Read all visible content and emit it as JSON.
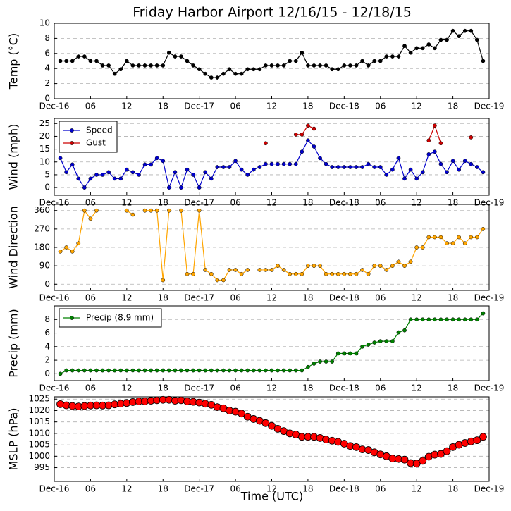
{
  "chart_data": [
    {
      "type": "line",
      "title": "Friday Harbor Airport 12/16/15 - 12/18/15",
      "ylabel": "Temp (°C)",
      "x": [
        1,
        2,
        3,
        4,
        5,
        6,
        7,
        8,
        9,
        10,
        11,
        12,
        13,
        14,
        15,
        16,
        17,
        18,
        19,
        20,
        21,
        22,
        23,
        24,
        25,
        26,
        27,
        28,
        29,
        30,
        31,
        32,
        33,
        34,
        35,
        36,
        37,
        38,
        39,
        40,
        41,
        42,
        43,
        44,
        45,
        46,
        47,
        48,
        49,
        50,
        51,
        52,
        53,
        54,
        55,
        56,
        57,
        58,
        59,
        60,
        61,
        62,
        63,
        64,
        65,
        66,
        67,
        68,
        69,
        70,
        71
      ],
      "series": [
        {
          "name": "Temp",
          "color": "#000000",
          "values": [
            5,
            5,
            5,
            5.6,
            5.6,
            5,
            5,
            4.4,
            4.4,
            3.3,
            3.9,
            5,
            4.4,
            4.4,
            4.4,
            4.4,
            4.4,
            4.4,
            6.1,
            5.6,
            5.6,
            5,
            4.4,
            3.9,
            3.3,
            2.8,
            2.8,
            3.3,
            3.9,
            3.3,
            3.3,
            3.9,
            3.9,
            3.9,
            4.4,
            4.4,
            4.4,
            4.4,
            5,
            5,
            6.1,
            4.4,
            4.4,
            4.4,
            4.4,
            3.9,
            3.9,
            4.4,
            4.4,
            4.4,
            5,
            4.4,
            5,
            5,
            5.6,
            5.6,
            5.6,
            7,
            6.1,
            6.7,
            6.7,
            7.2,
            6.7,
            7.8,
            7.8,
            9,
            8.3,
            9,
            9,
            7.8,
            5
          ]
        }
      ],
      "xlim": [
        0,
        72
      ],
      "xticks": [
        {
          "value": 0,
          "label": "Dec-16"
        },
        {
          "value": 6,
          "label": "06"
        },
        {
          "value": 12,
          "label": "12"
        },
        {
          "value": 18,
          "label": "18"
        },
        {
          "value": 24,
          "label": "Dec-17"
        },
        {
          "value": 30,
          "label": "06"
        },
        {
          "value": 36,
          "label": "12"
        },
        {
          "value": 42,
          "label": "18"
        },
        {
          "value": 48,
          "label": "Dec-18"
        },
        {
          "value": 54,
          "label": "06"
        },
        {
          "value": 60,
          "label": "12"
        },
        {
          "value": 66,
          "label": "18"
        },
        {
          "value": 72,
          "label": "Dec-19"
        }
      ],
      "ylim": [
        0,
        10
      ],
      "yticks": [
        0,
        2,
        4,
        6,
        8,
        10
      ],
      "grid": true
    },
    {
      "type": "line",
      "ylabel": "Wind (mph)",
      "x": [
        1,
        2,
        3,
        4,
        5,
        6,
        7,
        8,
        9,
        10,
        11,
        12,
        13,
        14,
        15,
        16,
        17,
        18,
        19,
        20,
        21,
        22,
        23,
        24,
        25,
        26,
        27,
        28,
        29,
        30,
        31,
        32,
        33,
        34,
        35,
        36,
        37,
        38,
        39,
        40,
        41,
        42,
        43,
        44,
        45,
        46,
        47,
        48,
        49,
        50,
        51,
        52,
        53,
        54,
        55,
        56,
        57,
        58,
        59,
        60,
        61,
        62,
        63,
        64,
        65,
        66,
        67,
        68,
        69,
        70,
        71
      ],
      "series": [
        {
          "name": "Speed",
          "color": "#0000cc",
          "values": [
            11.5,
            6,
            9,
            3.5,
            0,
            3.5,
            5,
            5,
            6,
            3.5,
            3.5,
            7,
            6,
            5,
            9,
            9,
            11.5,
            10.4,
            0,
            6,
            0,
            7,
            5,
            0,
            6,
            3.5,
            8,
            8,
            8,
            10.4,
            7,
            5,
            7,
            8,
            9.2,
            9.2,
            9.2,
            9.2,
            9.2,
            9.2,
            14,
            18.4,
            16,
            11.5,
            9.2,
            8,
            8,
            8,
            8,
            8,
            8,
            9.2,
            8,
            8,
            5,
            7,
            11.5,
            3.5,
            7,
            3.5,
            6,
            13,
            14,
            9.2,
            6,
            10.4,
            7,
            10.4,
            9.2,
            8,
            6
          ]
        },
        {
          "name": "Gust",
          "color": "#cc0000",
          "values": [
            null,
            null,
            null,
            null,
            null,
            null,
            null,
            null,
            null,
            null,
            null,
            null,
            null,
            null,
            null,
            null,
            null,
            null,
            null,
            null,
            null,
            null,
            null,
            null,
            null,
            null,
            null,
            null,
            null,
            null,
            null,
            null,
            null,
            null,
            17.3,
            null,
            null,
            null,
            null,
            20.7,
            20.7,
            24.2,
            23,
            null,
            null,
            null,
            null,
            null,
            null,
            null,
            null,
            null,
            null,
            null,
            null,
            null,
            null,
            null,
            null,
            null,
            null,
            18.4,
            24.2,
            17.3,
            null,
            null,
            null,
            null,
            19.6,
            null,
            null
          ]
        }
      ],
      "xlim": [
        0,
        72
      ],
      "xticks": [
        {
          "value": 0,
          "label": "Dec-16"
        },
        {
          "value": 6,
          "label": "06"
        },
        {
          "value": 12,
          "label": "12"
        },
        {
          "value": 18,
          "label": "18"
        },
        {
          "value": 24,
          "label": "Dec-17"
        },
        {
          "value": 30,
          "label": "06"
        },
        {
          "value": 36,
          "label": "12"
        },
        {
          "value": 42,
          "label": "18"
        },
        {
          "value": 48,
          "label": "Dec-18"
        },
        {
          "value": 54,
          "label": "06"
        },
        {
          "value": 60,
          "label": "12"
        },
        {
          "value": 66,
          "label": "18"
        },
        {
          "value": 72,
          "label": "Dec-19"
        }
      ],
      "ylim": [
        -3,
        27
      ],
      "yticks": [
        0,
        5,
        10,
        15,
        20,
        25
      ],
      "grid": true,
      "legend": "upper left"
    },
    {
      "type": "line",
      "ylabel": "Wind Direction",
      "x": [
        1,
        2,
        3,
        4,
        5,
        6,
        7,
        8,
        9,
        10,
        11,
        12,
        13,
        14,
        15,
        16,
        17,
        18,
        19,
        20,
        21,
        22,
        23,
        24,
        25,
        26,
        27,
        28,
        29,
        30,
        31,
        32,
        33,
        34,
        35,
        36,
        37,
        38,
        39,
        40,
        41,
        42,
        43,
        44,
        45,
        46,
        47,
        48,
        49,
        50,
        51,
        52,
        53,
        54,
        55,
        56,
        57,
        58,
        59,
        60,
        61,
        62,
        63,
        64,
        65,
        66,
        67,
        68,
        69,
        70,
        71
      ],
      "series": [
        {
          "name": "Wind Direction",
          "color": "#ffa500",
          "values": [
            160,
            180,
            160,
            200,
            360,
            320,
            360,
            null,
            null,
            null,
            null,
            360,
            340,
            null,
            360,
            360,
            360,
            20,
            360,
            null,
            360,
            50,
            50,
            360,
            70,
            50,
            20,
            20,
            70,
            70,
            50,
            70,
            null,
            70,
            70,
            70,
            90,
            70,
            50,
            50,
            50,
            90,
            90,
            90,
            50,
            50,
            50,
            50,
            50,
            50,
            70,
            50,
            90,
            90,
            70,
            90,
            110,
            90,
            110,
            180,
            180,
            230,
            230,
            230,
            200,
            200,
            230,
            200,
            230,
            230,
            270
          ]
        }
      ],
      "xlim": [
        0,
        72
      ],
      "xticks": [
        {
          "value": 0,
          "label": "Dec-16"
        },
        {
          "value": 6,
          "label": "06"
        },
        {
          "value": 12,
          "label": "12"
        },
        {
          "value": 18,
          "label": "18"
        },
        {
          "value": 24,
          "label": "Dec-17"
        },
        {
          "value": 30,
          "label": "06"
        },
        {
          "value": 36,
          "label": "12"
        },
        {
          "value": 42,
          "label": "18"
        },
        {
          "value": 48,
          "label": "Dec-18"
        },
        {
          "value": 54,
          "label": "06"
        },
        {
          "value": 60,
          "label": "12"
        },
        {
          "value": 66,
          "label": "18"
        },
        {
          "value": 72,
          "label": "Dec-19"
        }
      ],
      "ylim": [
        -30,
        390
      ],
      "yticks": [
        0,
        90,
        180,
        270,
        360
      ],
      "grid": true
    },
    {
      "type": "line",
      "ylabel": "Precip (mm)",
      "x": [
        1,
        2,
        3,
        4,
        5,
        6,
        7,
        8,
        9,
        10,
        11,
        12,
        13,
        14,
        15,
        16,
        17,
        18,
        19,
        20,
        21,
        22,
        23,
        24,
        25,
        26,
        27,
        28,
        29,
        30,
        31,
        32,
        33,
        34,
        35,
        36,
        37,
        38,
        39,
        40,
        41,
        42,
        43,
        44,
        45,
        46,
        47,
        48,
        49,
        50,
        51,
        52,
        53,
        54,
        55,
        56,
        57,
        58,
        59,
        60,
        61,
        62,
        63,
        64,
        65,
        66,
        67,
        68,
        69,
        70,
        71
      ],
      "series": [
        {
          "name": "Precip (8.9 mm)",
          "color": "#008000",
          "values": [
            0,
            0.5,
            0.5,
            0.5,
            0.5,
            0.5,
            0.5,
            0.5,
            0.5,
            0.5,
            0.5,
            0.5,
            0.5,
            0.5,
            0.5,
            0.5,
            0.5,
            0.5,
            0.5,
            0.5,
            0.5,
            0.5,
            0.5,
            0.5,
            0.5,
            0.5,
            0.5,
            0.5,
            0.5,
            0.5,
            0.5,
            0.5,
            0.5,
            0.5,
            0.5,
            0.5,
            0.5,
            0.5,
            0.5,
            0.5,
            0.5,
            1,
            1.5,
            1.8,
            1.8,
            1.8,
            3,
            3,
            3,
            3,
            4,
            4.3,
            4.6,
            4.8,
            4.8,
            4.8,
            6.1,
            6.4,
            8,
            8,
            8,
            8,
            8,
            8,
            8,
            8,
            8,
            8,
            8,
            8,
            8.9
          ]
        }
      ],
      "xlim": [
        0,
        72
      ],
      "xticks": [
        {
          "value": 0,
          "label": "Dec-16"
        },
        {
          "value": 6,
          "label": "06"
        },
        {
          "value": 12,
          "label": "12"
        },
        {
          "value": 18,
          "label": "18"
        },
        {
          "value": 24,
          "label": "Dec-17"
        },
        {
          "value": 30,
          "label": "06"
        },
        {
          "value": 36,
          "label": "12"
        },
        {
          "value": 42,
          "label": "18"
        },
        {
          "value": 48,
          "label": "Dec-18"
        },
        {
          "value": 54,
          "label": "06"
        },
        {
          "value": 60,
          "label": "12"
        },
        {
          "value": 66,
          "label": "18"
        },
        {
          "value": 72,
          "label": "Dec-19"
        }
      ],
      "ylim": [
        -1,
        10
      ],
      "yticks": [
        0,
        2,
        4,
        6,
        8
      ],
      "grid": true,
      "legend": "upper left"
    },
    {
      "type": "line",
      "ylabel": "MSLP (hPa)",
      "xlabel": "Time (UTC)",
      "x": [
        1,
        2,
        3,
        4,
        5,
        6,
        7,
        8,
        9,
        10,
        11,
        12,
        13,
        14,
        15,
        16,
        17,
        18,
        19,
        20,
        21,
        22,
        23,
        24,
        25,
        26,
        27,
        28,
        29,
        30,
        31,
        32,
        33,
        34,
        35,
        36,
        37,
        38,
        39,
        40,
        41,
        42,
        43,
        44,
        45,
        46,
        47,
        48,
        49,
        50,
        51,
        52,
        53,
        54,
        55,
        56,
        57,
        58,
        59,
        60,
        61,
        62,
        63,
        64,
        65,
        66,
        67,
        68,
        69,
        70,
        71
      ],
      "series": [
        {
          "name": "MSLP",
          "color": "#ff0000",
          "values": [
            1022.8,
            1022.3,
            1022,
            1021.8,
            1022,
            1022.2,
            1022.3,
            1022.2,
            1022.3,
            1022.7,
            1023,
            1023.3,
            1023.7,
            1024,
            1024,
            1024.3,
            1024.5,
            1024.7,
            1024.7,
            1024.3,
            1024.5,
            1024,
            1023.8,
            1023.5,
            1023,
            1022.5,
            1021.5,
            1021,
            1020,
            1019.5,
            1018.7,
            1017.3,
            1016.3,
            1015.5,
            1014.5,
            1013.3,
            1012,
            1011,
            1010,
            1009.5,
            1008.5,
            1008.5,
            1008.5,
            1008,
            1007.3,
            1006.8,
            1006.3,
            1005.5,
            1004.5,
            1004,
            1003,
            1002.7,
            1001.7,
            1000.8,
            1000,
            999,
            998.8,
            998.5,
            997,
            996.8,
            998,
            999.8,
            1000.7,
            1001,
            1002.2,
            1004,
            1005,
            1005.8,
            1006.5,
            1007,
            1008.5
          ]
        }
      ],
      "xlim": [
        0,
        72
      ],
      "xticks": [
        {
          "value": 0,
          "label": "Dec-16"
        },
        {
          "value": 6,
          "label": "06"
        },
        {
          "value": 12,
          "label": "12"
        },
        {
          "value": 18,
          "label": "18"
        },
        {
          "value": 24,
          "label": "Dec-17"
        },
        {
          "value": 30,
          "label": "06"
        },
        {
          "value": 36,
          "label": "12"
        },
        {
          "value": 42,
          "label": "18"
        },
        {
          "value": 48,
          "label": "Dec-18"
        },
        {
          "value": 54,
          "label": "06"
        },
        {
          "value": 60,
          "label": "12"
        },
        {
          "value": 66,
          "label": "18"
        },
        {
          "value": 72,
          "label": "Dec-19"
        }
      ],
      "ylim": [
        989,
        1026
      ],
      "yticks": [
        995,
        1000,
        1005,
        1010,
        1015,
        1020,
        1025
      ],
      "grid": true
    }
  ]
}
